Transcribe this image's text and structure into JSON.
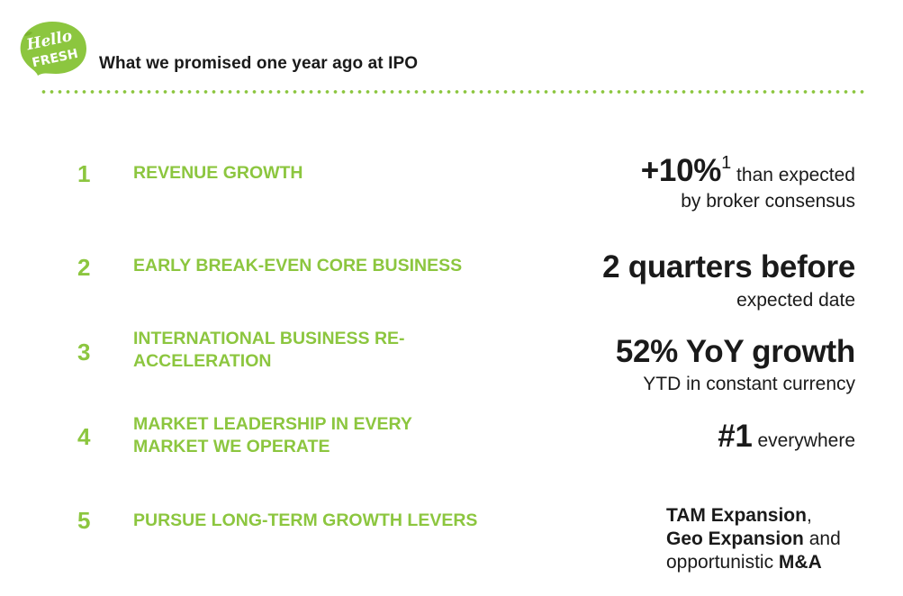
{
  "header": {
    "logo": {
      "word1": "Hello",
      "word2": "FRESH"
    },
    "title": "What we promised one year ago at IPO"
  },
  "rows": [
    {
      "number": "1",
      "label": "REVENUE GROWTH",
      "highlight": "+10%",
      "footnote": "1",
      "line1_rest": " than expected",
      "line2": "by broker consensus"
    },
    {
      "number": "2",
      "label": "EARLY BREAK-EVEN CORE BUSINESS",
      "highlight": "2 quarters before",
      "line2": "expected date"
    },
    {
      "number": "3",
      "label_line1": "INTERNATIONAL BUSINESS RE-",
      "label_line2": "ACCELERATION",
      "highlight": "52% YoY growth",
      "line2": "YTD in constant currency"
    },
    {
      "number": "4",
      "label_line1": "MARKET LEADERSHIP IN EVERY",
      "label_line2": "MARKET WE OPERATE",
      "highlight": "#1",
      "line1_rest": " everywhere"
    },
    {
      "number": "5",
      "label": "PURSUE LONG-TERM GROWTH LEVERS",
      "l1_bold": "TAM Expansion",
      "l1_rest": ",",
      "l2_bold": "Geo Expansion",
      "l2_rest": " and",
      "l3_rest": "opportunistic ",
      "l3_bold": "M&A"
    }
  ],
  "colors": {
    "brand_green": "#8cc63f",
    "text": "#1a1a1a"
  }
}
